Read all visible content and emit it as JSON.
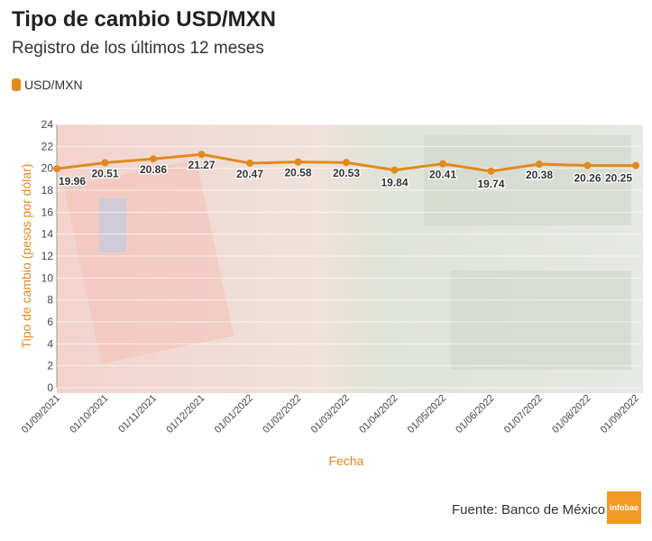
{
  "header": {
    "title": "Tipo de cambio USD/MXN",
    "subtitle": "Registro de los últimos 12 meses"
  },
  "legend": {
    "label": "USD/MXN",
    "color": "#E08A1E"
  },
  "footer": {
    "source": "Fuente: Banco de México",
    "logo": "infobae"
  },
  "chart_data": {
    "type": "line",
    "title": "Tipo de cambio USD/MXN",
    "xlabel": "Fecha",
    "ylabel": "Tipo de cambio (pesos por dólar)",
    "ylim": [
      0,
      24
    ],
    "yticks": [
      0,
      2,
      4,
      6,
      8,
      10,
      12,
      14,
      16,
      18,
      20,
      22,
      24
    ],
    "grid": true,
    "legend_position": "top-left",
    "categories": [
      "01/09/2021",
      "01/10/2021",
      "01/11/2021",
      "01/12/2021",
      "01/01/2022",
      "01/02/2022",
      "01/03/2022",
      "01/04/2022",
      "01/05/2022",
      "01/06/2022",
      "01/07/2022",
      "01/08/2022",
      "01/09/2022"
    ],
    "series": [
      {
        "name": "USD/MXN",
        "color": "#E08A1E",
        "values": [
          19.96,
          20.51,
          20.86,
          21.27,
          20.47,
          20.58,
          20.53,
          19.84,
          20.41,
          19.74,
          20.38,
          20.26,
          20.25
        ]
      }
    ]
  }
}
